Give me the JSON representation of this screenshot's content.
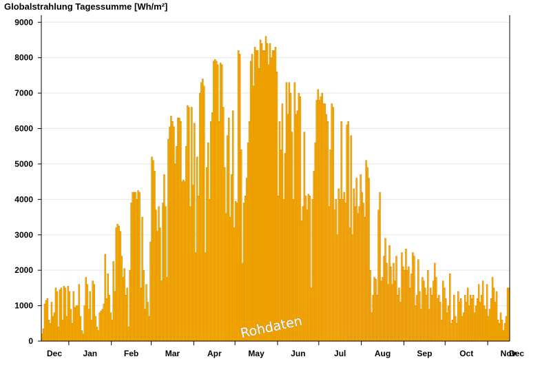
{
  "chart_data": {
    "type": "bar",
    "title": "Globalstrahlung Tagessumme [Wh/m²]",
    "watermark": "Rohdaten",
    "xlabel": "",
    "ylabel": "",
    "ylim": [
      0,
      9200
    ],
    "yticks": [
      0,
      1000,
      2000,
      3000,
      4000,
      5000,
      6000,
      7000,
      8000,
      9000
    ],
    "grid": true,
    "colors": {
      "bar_fill": "#ffb000",
      "bar_edge": "#c07800",
      "grid": "#e6e6e6",
      "axis": "#000000"
    },
    "month_labels": [
      "Dec",
      "Jan",
      "Feb",
      "Mar",
      "Apr",
      "May",
      "Jun",
      "Jul",
      "Aug",
      "Sep",
      "Oct",
      "Nov",
      "Dec"
    ],
    "month_start_day": [
      0,
      20,
      51,
      80,
      111,
      141,
      172,
      202,
      233,
      264,
      294,
      325,
      355
    ],
    "values": [
      200,
      350,
      1050,
      1150,
      1200,
      600,
      500,
      1100,
      700,
      800,
      1500,
      1400,
      400,
      1450,
      1500,
      600,
      1550,
      1500,
      700,
      1550,
      1400,
      900,
      500,
      1400,
      950,
      1000,
      1000,
      1600,
      700,
      300,
      200,
      1000,
      1800,
      1600,
      900,
      1400,
      600,
      1700,
      1600,
      700,
      400,
      300,
      800,
      850,
      900,
      1050,
      2450,
      1200,
      1900,
      1300,
      800,
      600,
      2250,
      1400,
      3200,
      3300,
      3250,
      3100,
      2400,
      1800,
      2050,
      1300,
      1500,
      400,
      2000,
      3900,
      4200,
      4200,
      4200,
      4000,
      4250,
      4200,
      1500,
      3500,
      2000,
      900,
      1600,
      1100,
      700,
      2800,
      5200,
      5100,
      4800,
      3700,
      3100,
      3800,
      3200,
      1700,
      3900,
      4700,
      3800,
      1800,
      5700,
      6050,
      6350,
      6200,
      6050,
      5000,
      5500,
      6300,
      6300,
      6200,
      4500,
      4550,
      4500,
      5500,
      6650,
      6600,
      3800,
      6600,
      4400,
      6150,
      2500,
      5200,
      4100,
      7000,
      7300,
      7400,
      7200,
      2500,
      4900,
      5600,
      4000,
      6200,
      6450,
      7900,
      7950,
      7900,
      7800,
      6200,
      7850,
      7800,
      6600,
      4900,
      3600,
      5800,
      6300,
      3500,
      4700,
      6500,
      3200,
      3950,
      3900,
      8200,
      8100,
      5400,
      2200,
      3900,
      4100,
      4600,
      5600,
      6200,
      7900,
      8100,
      7200,
      8300,
      8200,
      8200,
      7700,
      8500,
      8400,
      8200,
      8200,
      8600,
      8400,
      7800,
      8400,
      8000,
      8200,
      8200,
      8300,
      7600,
      4100,
      6200,
      5400,
      6700,
      4000,
      5300,
      7300,
      6400,
      7300,
      7000,
      5900,
      4000,
      7300,
      6400,
      6500,
      7000,
      6900,
      3400,
      3800,
      5900,
      4100,
      3700,
      4150,
      4100,
      1500,
      4000,
      4800,
      5600,
      6800,
      7100,
      6800,
      6900,
      7000,
      6700,
      6700,
      6400,
      6200,
      3800,
      5400,
      6700,
      6600,
      3700,
      4000,
      3000,
      4300,
      4000,
      6200,
      4000,
      4200,
      3900,
      6100,
      6200,
      3200,
      5800,
      3000,
      4300,
      3800,
      4600,
      3600,
      3800,
      4700,
      4200,
      3900,
      3500,
      5100,
      4900,
      4600,
      2000,
      800,
      1300,
      1800,
      1750,
      1300,
      3700,
      4200,
      1700,
      1800,
      2400,
      2900,
      2200,
      1600,
      2700,
      2100,
      1600,
      2200,
      1700,
      2400,
      1300,
      1500,
      1100,
      2500,
      2100,
      2000,
      2600,
      2000,
      2100,
      1500,
      1900,
      2500,
      2400,
      1000,
      1300,
      2300,
      1400,
      900,
      1800,
      1700,
      1500,
      1300,
      2000,
      900,
      1500,
      1300,
      1700,
      2200,
      1800,
      1200,
      1300,
      1100,
      600,
      1700,
      1500,
      1200,
      800,
      1000,
      1900,
      500,
      600,
      1300,
      700,
      500,
      1400,
      1100,
      1200,
      700,
      800,
      1300,
      1100,
      1500,
      1000,
      1300,
      1200,
      1300,
      800,
      1000,
      1200,
      1600,
      1100,
      1300,
      1700,
      1000,
      900,
      1600,
      700,
      900,
      1200,
      1800,
      1500,
      1100,
      1400,
      600,
      500,
      800,
      600,
      300,
      500,
      700,
      1500,
      1500
    ]
  }
}
